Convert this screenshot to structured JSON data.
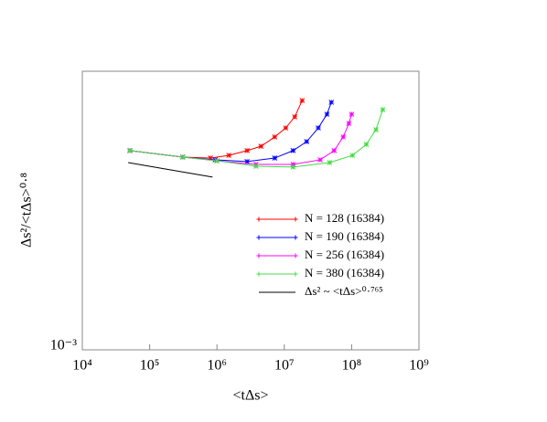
{
  "chart_data": {
    "type": "line",
    "xlabel": "<tΔs>",
    "ylabel": "Δs²/<tΔs>⁰·⁸",
    "xlog": true,
    "ylog": true,
    "xlim": [
      10000,
      1000000000
    ],
    "xticks": [
      {
        "value": 10000,
        "label": "10⁴"
      },
      {
        "value": 100000,
        "label": "10⁵"
      },
      {
        "value": 1000000,
        "label": "10⁶"
      },
      {
        "value": 10000000,
        "label": "10⁷"
      },
      {
        "value": 100000000,
        "label": "10⁸"
      },
      {
        "value": 1000000000,
        "label": "10⁹"
      }
    ],
    "ylim": [
      0.001,
      0.01
    ],
    "yticks": [
      {
        "value": 0.001,
        "label": "10⁻³"
      }
    ],
    "legend": "lower right",
    "series": [
      {
        "name": "N = 128 (16384)",
        "color": "#ff0000",
        "x": [
          51000,
          310000,
          800000,
          1500000,
          2800000,
          4500000,
          7200000,
          10500000,
          14300000,
          18400000
        ],
        "values": [
          0.00519,
          0.00492,
          0.00488,
          0.00499,
          0.00519,
          0.00538,
          0.00581,
          0.00626,
          0.00686,
          0.00785
        ]
      },
      {
        "name": "N = 190 (16384)",
        "color": "#0000ff",
        "x": [
          51000,
          310000,
          940000,
          2800000,
          7200000,
          13500000,
          21500000,
          32000000,
          43000000,
          50000000
        ],
        "values": [
          0.00519,
          0.00492,
          0.00481,
          0.00474,
          0.00488,
          0.00519,
          0.00559,
          0.00626,
          0.00701,
          0.00774
        ]
      },
      {
        "name": "N = 256 (16384)",
        "color": "#ff00ff",
        "x": [
          51000,
          310000,
          1000000,
          3800000,
          13500000,
          34000000,
          55000000,
          75000000,
          91000000,
          100000000
        ],
        "values": [
          0.00519,
          0.00492,
          0.00477,
          0.00463,
          0.00463,
          0.00481,
          0.00519,
          0.00581,
          0.0065,
          0.00701
        ]
      },
      {
        "name": "N = 380 (16384)",
        "color": "#44dd44",
        "x": [
          51000,
          310000,
          1000000,
          3800000,
          13500000,
          47000000,
          103000000,
          165000000,
          230000000,
          290000000
        ],
        "values": [
          0.00519,
          0.00492,
          0.00477,
          0.00456,
          0.00453,
          0.0047,
          0.00499,
          0.00546,
          0.00617,
          0.00728
        ]
      },
      {
        "name": "Δs² ~ <tΔs>⁰·⁷⁶⁵",
        "color": "#000000",
        "x": [
          48000,
          860000
        ],
        "values": [
          0.0047,
          0.00417
        ]
      }
    ]
  }
}
